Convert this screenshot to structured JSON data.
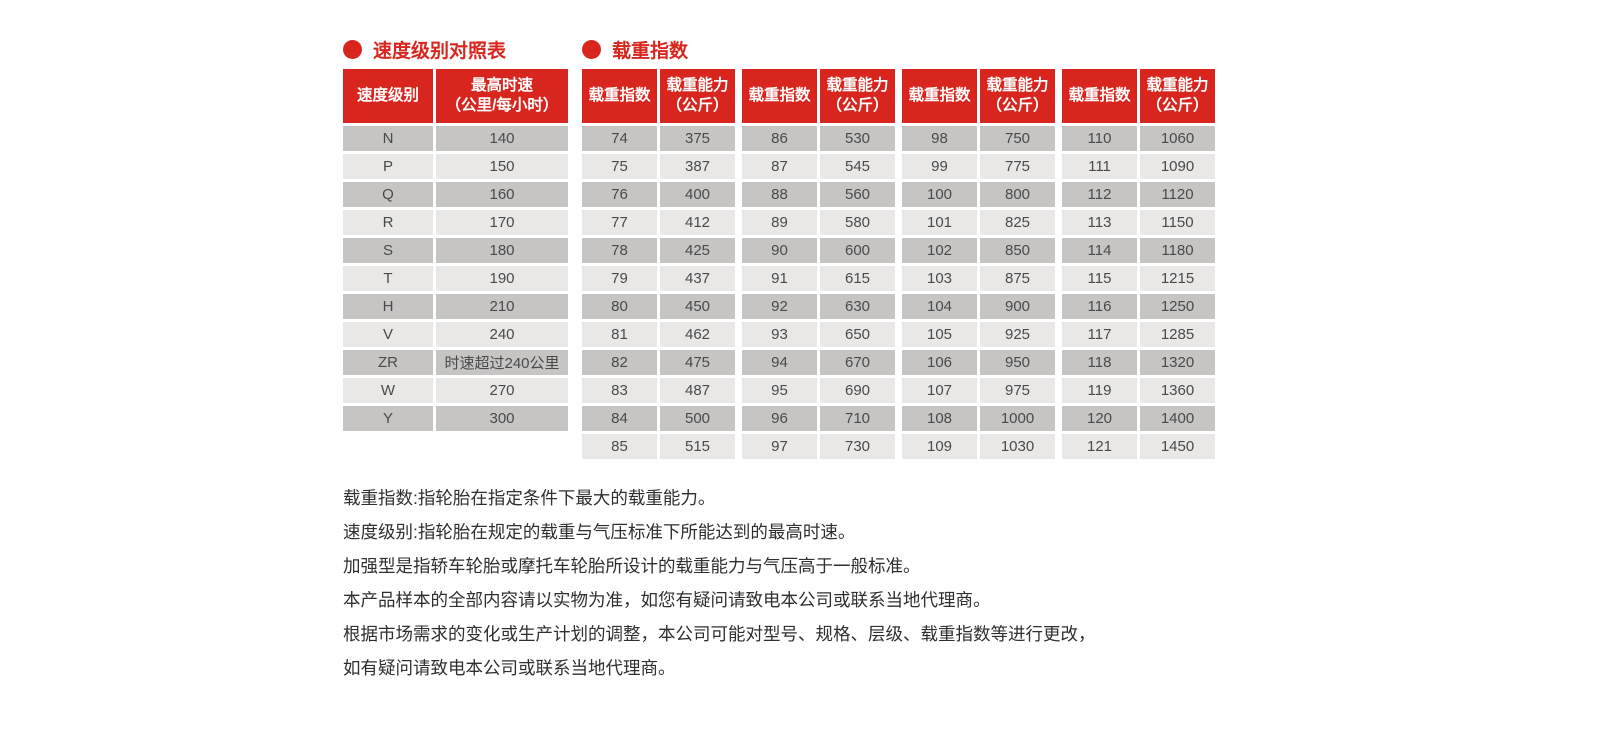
{
  "colors": {
    "accent": "#d8261e",
    "row_dark": "#c6c5c4",
    "row_light": "#e9e8e7",
    "cell_text": "#4a4a4a",
    "note_text": "#2f2f2f"
  },
  "speed_table": {
    "title": "速度级别对照表",
    "bullet_icon": "red-dot",
    "headers": [
      "速度级别",
      "最高时速\n（公里/每小时）"
    ],
    "rows": [
      [
        "N",
        "140"
      ],
      [
        "P",
        "150"
      ],
      [
        "Q",
        "160"
      ],
      [
        "R",
        "170"
      ],
      [
        "S",
        "180"
      ],
      [
        "T",
        "190"
      ],
      [
        "H",
        "210"
      ],
      [
        "V",
        "240"
      ],
      [
        "ZR",
        "时速超过240公里"
      ],
      [
        "W",
        "270"
      ],
      [
        "Y",
        "300"
      ]
    ]
  },
  "load_table": {
    "title": "载重指数",
    "bullet_icon": "red-dot",
    "col_headers": [
      "载重指数",
      "载重能力\n（公斤）"
    ],
    "groups": [
      {
        "rows": [
          [
            "74",
            "375"
          ],
          [
            "75",
            "387"
          ],
          [
            "76",
            "400"
          ],
          [
            "77",
            "412"
          ],
          [
            "78",
            "425"
          ],
          [
            "79",
            "437"
          ],
          [
            "80",
            "450"
          ],
          [
            "81",
            "462"
          ],
          [
            "82",
            "475"
          ],
          [
            "83",
            "487"
          ],
          [
            "84",
            "500"
          ],
          [
            "85",
            "515"
          ]
        ]
      },
      {
        "rows": [
          [
            "86",
            "530"
          ],
          [
            "87",
            "545"
          ],
          [
            "88",
            "560"
          ],
          [
            "89",
            "580"
          ],
          [
            "90",
            "600"
          ],
          [
            "91",
            "615"
          ],
          [
            "92",
            "630"
          ],
          [
            "93",
            "650"
          ],
          [
            "94",
            "670"
          ],
          [
            "95",
            "690"
          ],
          [
            "96",
            "710"
          ],
          [
            "97",
            "730"
          ]
        ]
      },
      {
        "rows": [
          [
            "98",
            "750"
          ],
          [
            "99",
            "775"
          ],
          [
            "100",
            "800"
          ],
          [
            "101",
            "825"
          ],
          [
            "102",
            "850"
          ],
          [
            "103",
            "875"
          ],
          [
            "104",
            "900"
          ],
          [
            "105",
            "925"
          ],
          [
            "106",
            "950"
          ],
          [
            "107",
            "975"
          ],
          [
            "108",
            "1000"
          ],
          [
            "109",
            "1030"
          ]
        ]
      },
      {
        "rows": [
          [
            "110",
            "1060"
          ],
          [
            "111",
            "1090"
          ],
          [
            "112",
            "1120"
          ],
          [
            "113",
            "1150"
          ],
          [
            "114",
            "1180"
          ],
          [
            "115",
            "1215"
          ],
          [
            "116",
            "1250"
          ],
          [
            "117",
            "1285"
          ],
          [
            "118",
            "1320"
          ],
          [
            "119",
            "1360"
          ],
          [
            "120",
            "1400"
          ],
          [
            "121",
            "1450"
          ]
        ]
      }
    ]
  },
  "notes": [
    "载重指数:指轮胎在指定条件下最大的载重能力。",
    "速度级别:指轮胎在规定的载重与气压标准下所能达到的最高时速。",
    "加强型是指轿车轮胎或摩托车轮胎所设计的载重能力与气压高于一般标准。",
    "本产品样本的全部内容请以实物为准，如您有疑问请致电本公司或联系当地代理商。",
    "根据市场需求的变化或生产计划的调整，本公司可能对型号、规格、层级、载重指数等进行更改，",
    "如有疑问请致电本公司或联系当地代理商。"
  ]
}
